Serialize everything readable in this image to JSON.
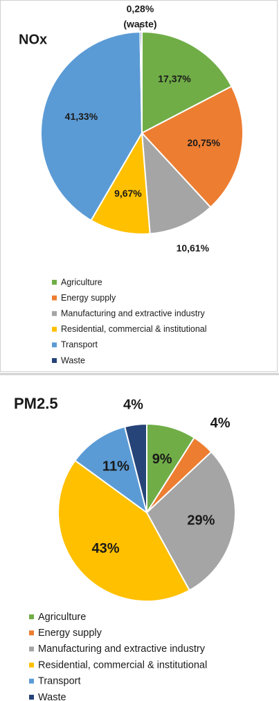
{
  "chart_data": [
    {
      "type": "pie",
      "title": "NOx",
      "categories": [
        "Agriculture",
        "Energy supply",
        "Manufacturing and extractive industry",
        "Residential, commercial & institutional",
        "Transport",
        "Waste"
      ],
      "values": [
        17.37,
        20.75,
        10.61,
        9.67,
        41.33,
        0.28
      ],
      "value_labels": [
        "17,37%",
        "20,75%",
        "10,61%",
        "9,67%",
        "41,33%",
        "0,28%"
      ],
      "annotation": "(waste)",
      "colors": [
        "#70ad47",
        "#ed7d31",
        "#a5a5a5",
        "#ffc000",
        "#5b9bd5",
        "#264478"
      ],
      "legend": "bottom"
    },
    {
      "type": "pie",
      "title": "PM2.5",
      "categories": [
        "Agriculture",
        "Energy supply",
        "Manufacturing and extractive industry",
        "Residential, commercial & institutional",
        "Transport",
        "Waste"
      ],
      "values": [
        9,
        4,
        29,
        43,
        11,
        4
      ],
      "value_labels": [
        "9%",
        "4%",
        "29%",
        "43%",
        "11%",
        "4%"
      ],
      "colors": [
        "#70ad47",
        "#ed7d31",
        "#a5a5a5",
        "#ffc000",
        "#5b9bd5",
        "#264478"
      ],
      "legend": "bottom"
    }
  ]
}
